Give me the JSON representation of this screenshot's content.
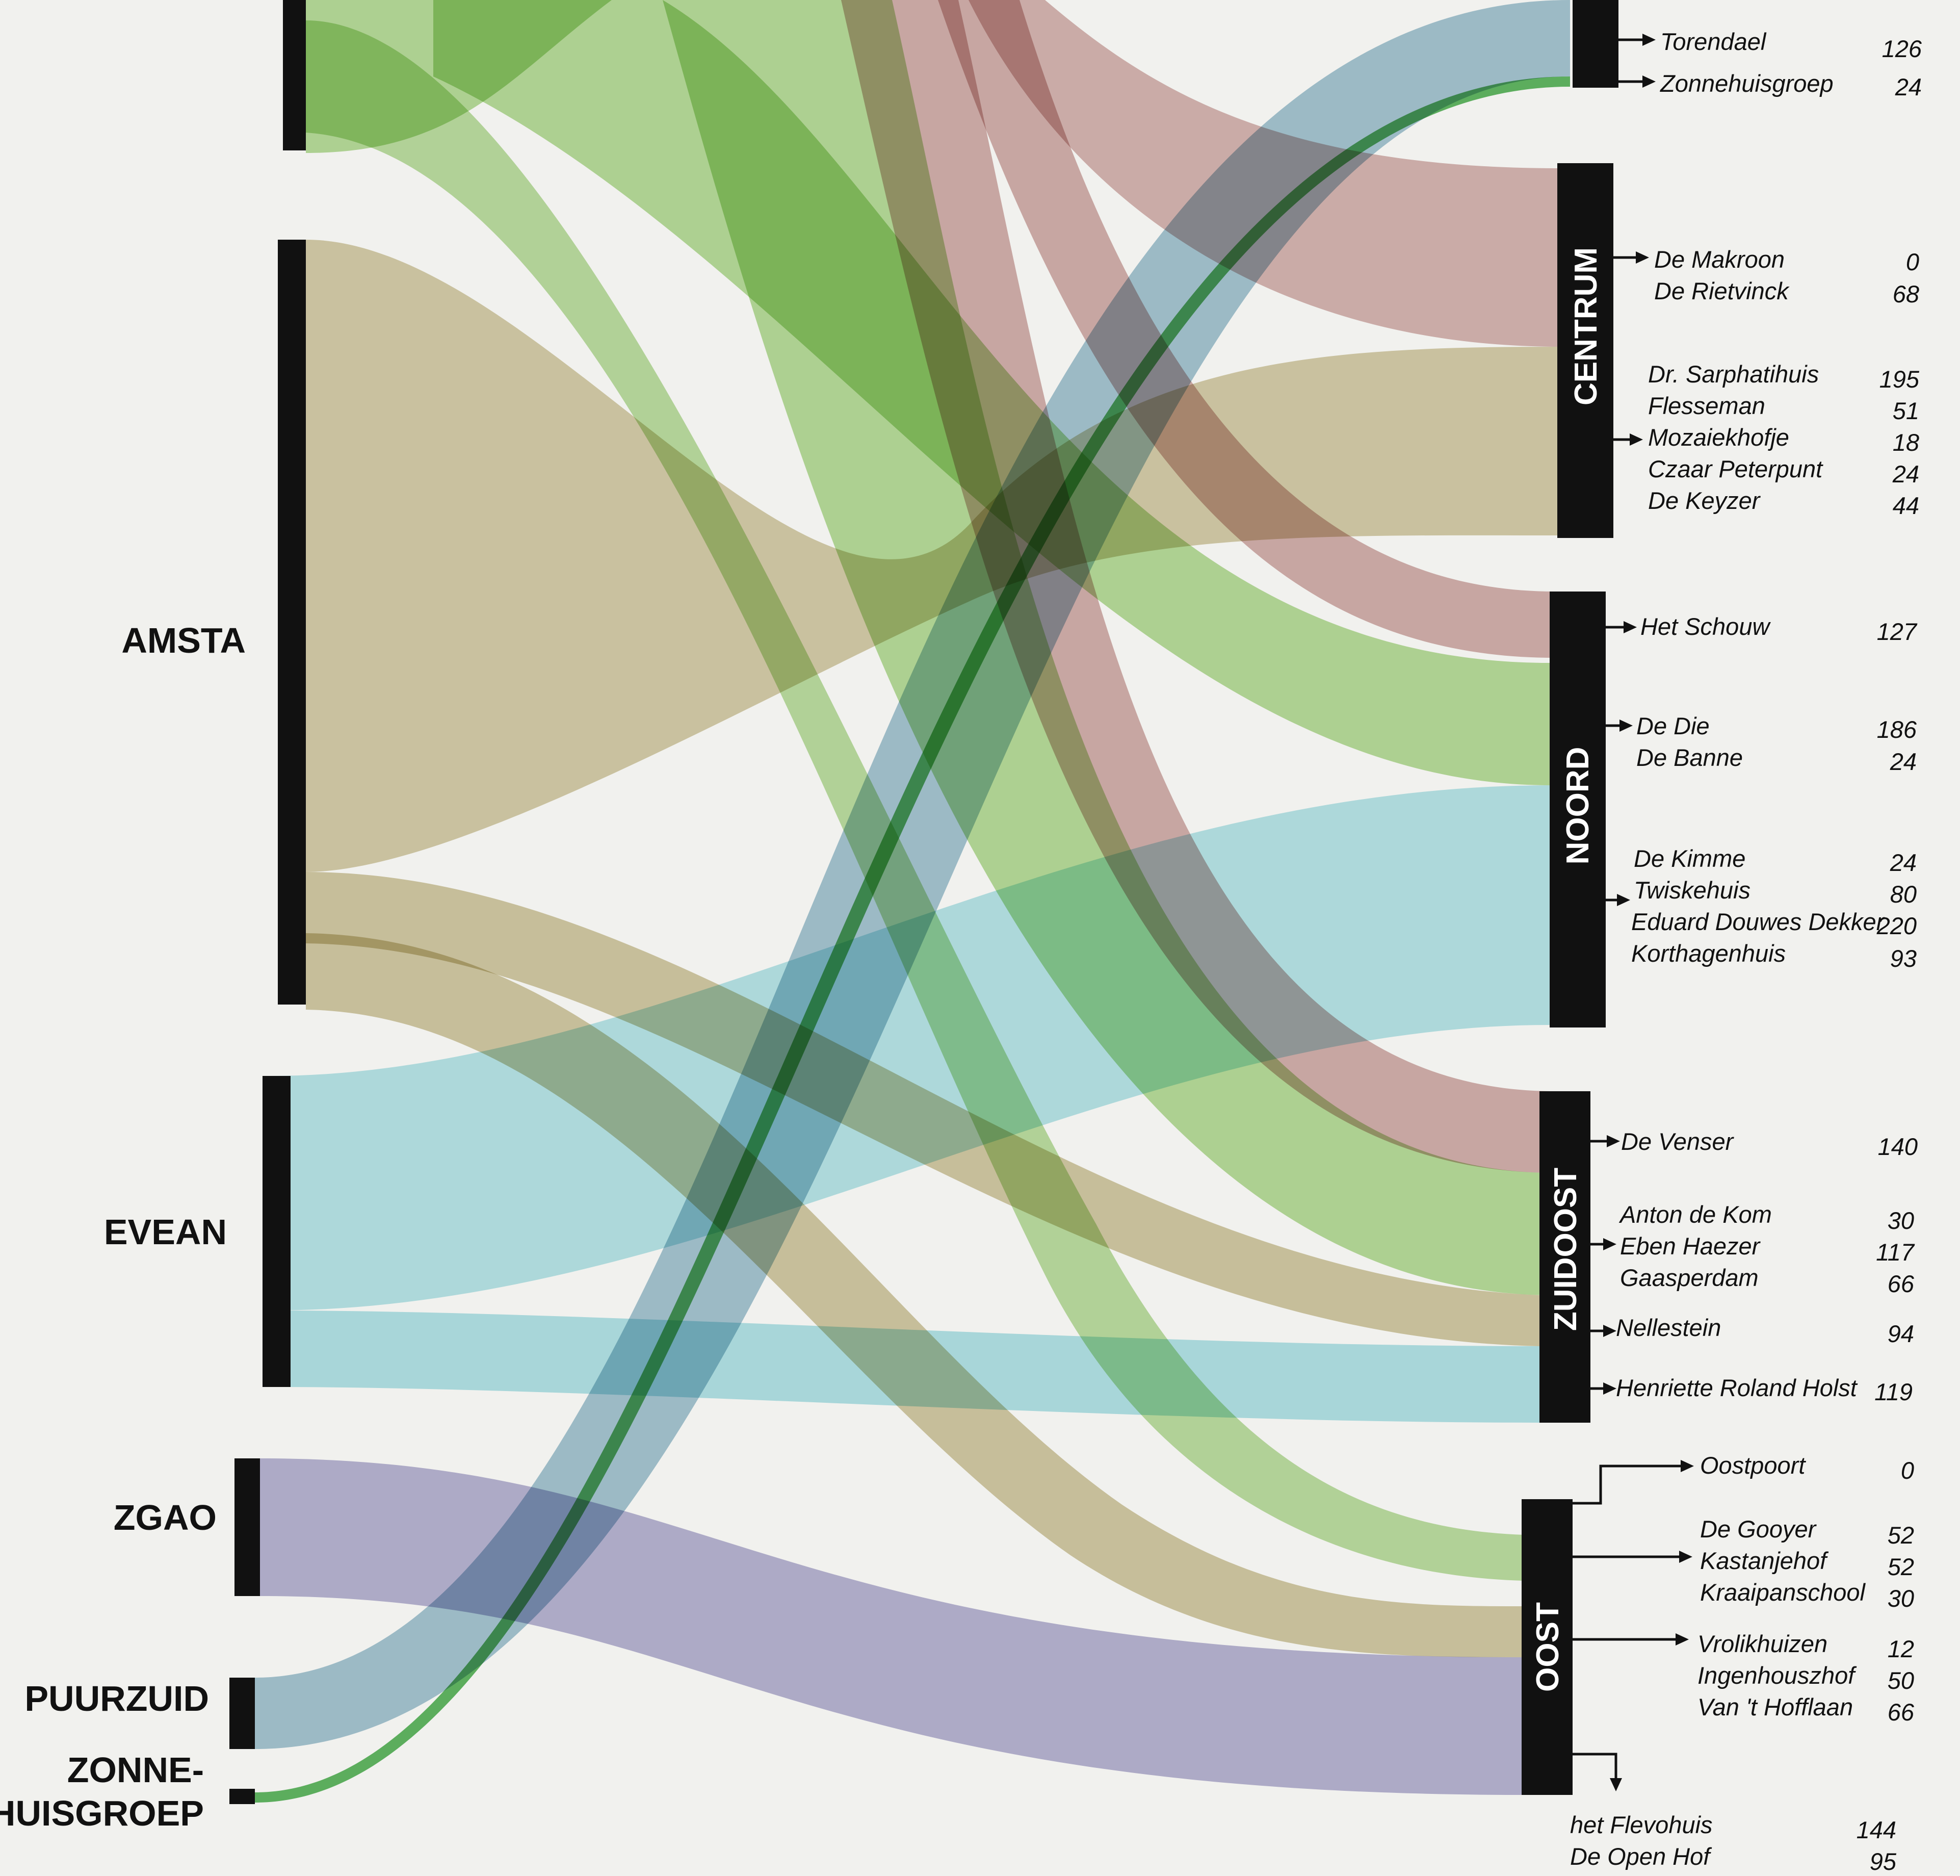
{
  "colors": {
    "background": "#f1f1ee",
    "bar": "#111111",
    "flows": {
      "AMSTA-green": "#9fd07a",
      "AMSTA-olive": "#c7bc8e",
      "AMSTA-brown": "#c89c9a",
      "EVEAN": "#9fdce3",
      "ZGAO": "#aaa7cc",
      "PUURZUID": "#8fb7c8",
      "ZONNEHUISGROEP": "#58b35c"
    }
  },
  "sources": [
    {
      "id": "top",
      "label": ""
    },
    {
      "id": "AMSTA",
      "label": "AMSTA"
    },
    {
      "id": "EVEAN",
      "label": "EVEAN"
    },
    {
      "id": "ZGAO",
      "label": "ZGAO"
    },
    {
      "id": "PUURZUID",
      "label": "PUURZUID"
    },
    {
      "id": "ZONNEHUISGROEP",
      "label_lines": [
        "ZONNE-",
        "HUISGROEP"
      ]
    }
  ],
  "regions": [
    {
      "id": "top",
      "label": ""
    },
    {
      "id": "centrum",
      "label": "CENTRUM"
    },
    {
      "id": "noord",
      "label": "NOORD"
    },
    {
      "id": "zuidoost",
      "label": "ZUIDOOST"
    },
    {
      "id": "oost",
      "label": "OOST"
    }
  ],
  "homes": [
    {
      "name": "Torendael",
      "value": "126"
    },
    {
      "name": "Zonnehuisgroep",
      "value": "24"
    },
    {
      "name": "De Makroon",
      "value": "0"
    },
    {
      "name": "De Rietvinck",
      "value": "68"
    },
    {
      "name": "Dr. Sarphatihuis",
      "value": "195"
    },
    {
      "name": "Flesseman",
      "value": "51"
    },
    {
      "name": "Mozaiekhofje",
      "value": "18"
    },
    {
      "name": "Czaar Peterpunt",
      "value": "24"
    },
    {
      "name": "De Keyzer",
      "value": "44"
    },
    {
      "name": "Het Schouw",
      "value": "127"
    },
    {
      "name": "De Die",
      "value": "186"
    },
    {
      "name": "De Banne",
      "value": "24"
    },
    {
      "name": "De Kimme",
      "value": "24"
    },
    {
      "name": "Twiskehuis",
      "value": "80"
    },
    {
      "name": "Eduard Douwes Dekker",
      "value": "220"
    },
    {
      "name": "Korthagenhuis",
      "value": "93"
    },
    {
      "name": "De Venser",
      "value": "140"
    },
    {
      "name": "Anton de Kom",
      "value": "30"
    },
    {
      "name": "Eben Haezer",
      "value": "117"
    },
    {
      "name": "Gaasperdam",
      "value": "66"
    },
    {
      "name": "Nellestein",
      "value": "94"
    },
    {
      "name": "Henriette Roland Holst",
      "value": "119"
    },
    {
      "name": "Oostpoort",
      "value": "0"
    },
    {
      "name": "De Gooyer",
      "value": "52"
    },
    {
      "name": "Kastanjehof",
      "value": "52"
    },
    {
      "name": "Kraaipanschool",
      "value": "30"
    },
    {
      "name": "Vrolikhuizen",
      "value": "12"
    },
    {
      "name": "Ingenhouszhof",
      "value": "50"
    },
    {
      "name": "Van 't Hofflaan",
      "value": "66"
    },
    {
      "name": "het Flevohuis",
      "value": "144"
    },
    {
      "name": "De Open Hof",
      "value": "95"
    }
  ],
  "flows": [
    {
      "from": "AMSTA",
      "to": "Torendael",
      "color": "AMSTA-green"
    },
    {
      "from": "AMSTA",
      "to": "De Rietvinck",
      "color": "AMSTA-brown"
    },
    {
      "from": "AMSTA",
      "to": "Dr. Sarphatihuis",
      "color": "AMSTA-olive"
    },
    {
      "from": "AMSTA",
      "to": "Het Schouw",
      "color": "AMSTA-brown"
    },
    {
      "from": "AMSTA",
      "to": "De Die",
      "color": "AMSTA-green"
    },
    {
      "from": "AMSTA",
      "to": "De Venser",
      "color": "AMSTA-brown"
    },
    {
      "from": "AMSTA",
      "to": "Eben Haezer",
      "color": "AMSTA-green"
    },
    {
      "from": "AMSTA",
      "to": "Nellestein",
      "color": "AMSTA-olive"
    },
    {
      "from": "AMSTA",
      "to": "De Gooyer",
      "color": "AMSTA-green"
    },
    {
      "from": "AMSTA",
      "to": "Vrolikhuizen",
      "color": "AMSTA-olive"
    },
    {
      "from": "EVEAN",
      "to": "Eduard Douwes Dekker",
      "color": "EVEAN"
    },
    {
      "from": "EVEAN",
      "to": "Henriette Roland Holst",
      "color": "EVEAN"
    },
    {
      "from": "ZGAO",
      "to": "het Flevohuis",
      "color": "ZGAO"
    },
    {
      "from": "PUURZUID",
      "to": "Torendael",
      "color": "PUURZUID"
    },
    {
      "from": "ZONNEHUISGROEP",
      "to": "Zonnehuisgroep",
      "color": "ZONNEHUISGROEP"
    }
  ]
}
